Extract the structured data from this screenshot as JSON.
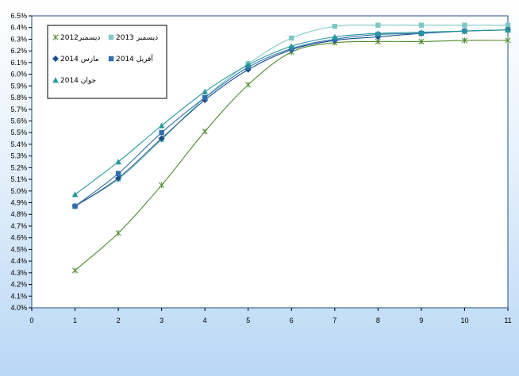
{
  "chart_data": {
    "type": "line",
    "x": [
      1,
      2,
      3,
      4,
      5,
      6,
      7,
      8,
      9,
      10,
      11
    ],
    "xlim": [
      0,
      11
    ],
    "x_ticks": [
      "0",
      "1",
      "2",
      "3",
      "4",
      "5",
      "6",
      "7",
      "8",
      "9",
      "10",
      "11"
    ],
    "ylim": [
      4.0,
      6.5
    ],
    "y_ticks": [
      "4.0%",
      "4.1%",
      "4.2%",
      "4.3%",
      "4.4%",
      "4.5%",
      "4.6%",
      "4.7%",
      "4.8%",
      "4.9%",
      "5.0%",
      "5.1%",
      "5.2%",
      "5.3%",
      "5.4%",
      "5.5%",
      "5.6%",
      "5.7%",
      "5.8%",
      "5.9%",
      "6.0%",
      "6.1%",
      "6.2%",
      "6.3%",
      "6.4%",
      "6.5%"
    ],
    "legend_position": "top-left",
    "grid": false,
    "series": [
      {
        "name": "ديسمبر2012",
        "marker": "star",
        "color": "#4e8a2e",
        "values": [
          4.32,
          4.64,
          5.05,
          5.51,
          5.91,
          6.19,
          6.27,
          6.28,
          6.28,
          6.29,
          6.29
        ]
      },
      {
        "name": "ديسمبر 2013",
        "marker": "square",
        "color": "#7fc7c4",
        "values": [
          4.87,
          5.1,
          5.44,
          5.8,
          6.09,
          6.31,
          6.41,
          6.42,
          6.42,
          6.42,
          6.42
        ]
      },
      {
        "name": "مارس 2014",
        "marker": "diamond",
        "color": "#1a4f8a",
        "values": [
          4.87,
          5.11,
          5.45,
          5.78,
          6.04,
          6.21,
          6.29,
          6.32,
          6.35,
          6.37,
          6.38
        ]
      },
      {
        "name": "أفريل 2014",
        "marker": "square",
        "color": "#2f6fad",
        "values": [
          4.87,
          5.15,
          5.5,
          5.8,
          6.06,
          6.22,
          6.3,
          6.34,
          6.35,
          6.37,
          6.38
        ]
      },
      {
        "name": "جوان 2014",
        "marker": "triangle",
        "color": "#22979c",
        "values": [
          4.97,
          5.25,
          5.56,
          5.85,
          6.08,
          6.24,
          6.32,
          6.35,
          6.36,
          6.37,
          6.38
        ]
      }
    ]
  }
}
